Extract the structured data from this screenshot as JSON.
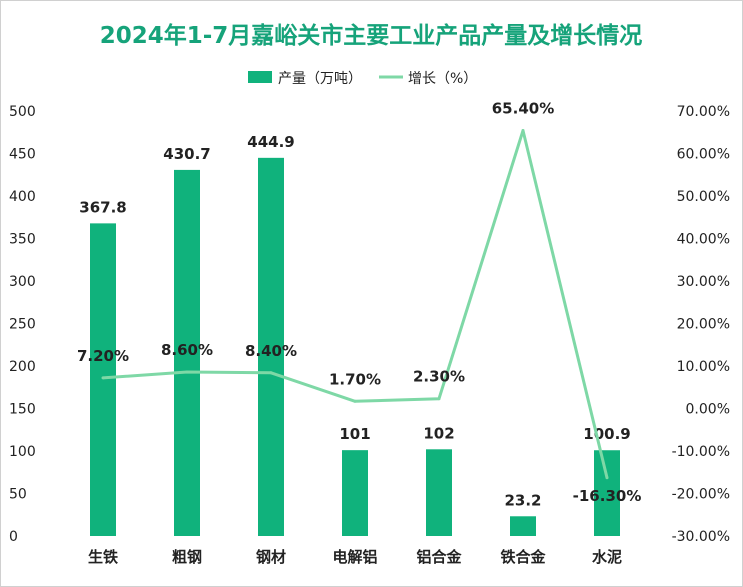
{
  "chart_data": {
    "type": "bar",
    "title": "2024年1-7月嘉峪关市主要工业产品产量及增长情况",
    "categories": [
      "生铁",
      "粗钢",
      "钢材",
      "电解铝",
      "铝合金",
      "铁合金",
      "水泥"
    ],
    "series": [
      {
        "name": "产量（万吨）",
        "type": "bar",
        "axis": "left",
        "color": "#10b27c",
        "values": [
          367.8,
          430.7,
          444.9,
          101,
          102,
          23.2,
          100.9
        ],
        "labels": [
          "367.8",
          "430.7",
          "444.9",
          "101",
          "102",
          "23.2",
          "100.9"
        ]
      },
      {
        "name": "增长（%）",
        "type": "line",
        "axis": "right",
        "color": "#7ed8a6",
        "values": [
          7.2,
          8.6,
          8.4,
          1.7,
          2.3,
          65.4,
          -16.3
        ],
        "labels": [
          "7.20%",
          "8.60%",
          "8.40%",
          "1.70%",
          "2.30%",
          "65.40%",
          "-16.30%"
        ]
      }
    ],
    "y_left": {
      "ylim": [
        0,
        500
      ],
      "ticks": [
        "0",
        "50",
        "100",
        "150",
        "200",
        "250",
        "300",
        "350",
        "400",
        "450",
        "500"
      ]
    },
    "y_right": {
      "ylim": [
        -30,
        70
      ],
      "ticks": [
        "-30.00%",
        "-20.00%",
        "-10.00%",
        "0.00%",
        "10.00%",
        "20.00%",
        "30.00%",
        "40.00%",
        "50.00%",
        "60.00%",
        "70.00%"
      ]
    },
    "legend": "top-center",
    "grid": false
  }
}
